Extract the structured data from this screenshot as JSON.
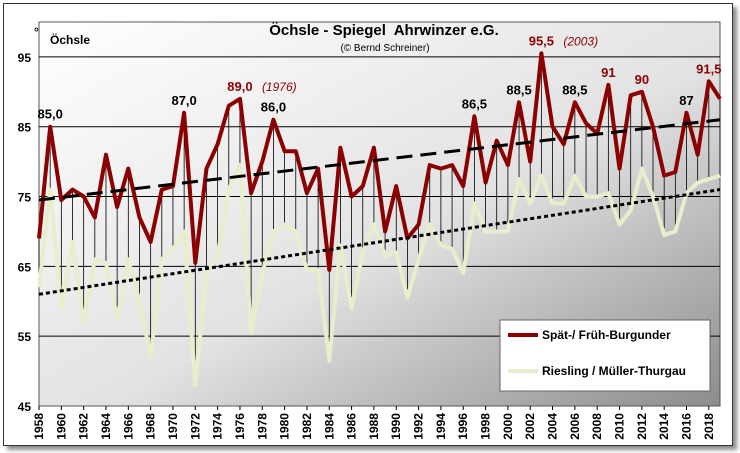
{
  "chart_data": {
    "type": "line",
    "title": "Öchsle - Spiegel  Ahrwinzer e.G.",
    "subtitle": "(© Bernd Schreiner)",
    "ylabel": "Öchsle",
    "ylabel_prefix": "°",
    "ylim": [
      45,
      100
    ],
    "yticks": [
      45,
      55,
      65,
      75,
      85,
      95
    ],
    "xlim": [
      1958,
      2019
    ],
    "xticks": [
      1958,
      1960,
      1962,
      1964,
      1966,
      1968,
      1970,
      1972,
      1974,
      1976,
      1978,
      1980,
      1982,
      1984,
      1986,
      1988,
      1990,
      1992,
      1994,
      1996,
      1998,
      2000,
      2002,
      2004,
      2006,
      2008,
      2010,
      2012,
      2014,
      2016,
      2018
    ],
    "grid": "horizontal",
    "x": [
      1958,
      1959,
      1960,
      1961,
      1962,
      1963,
      1964,
      1965,
      1966,
      1967,
      1968,
      1969,
      1970,
      1971,
      1972,
      1973,
      1974,
      1975,
      1976,
      1977,
      1978,
      1979,
      1980,
      1981,
      1982,
      1983,
      1984,
      1985,
      1986,
      1987,
      1988,
      1989,
      1990,
      1991,
      1992,
      1993,
      1994,
      1995,
      1996,
      1997,
      1998,
      1999,
      2000,
      2001,
      2002,
      2003,
      2004,
      2005,
      2006,
      2007,
      2008,
      2009,
      2010,
      2011,
      2012,
      2013,
      2014,
      2015,
      2016,
      2017,
      2018,
      2019
    ],
    "series": [
      {
        "name": "Spät-/ Früh-Burgunder",
        "color": "#8b0000",
        "values": [
          69,
          85,
          74.5,
          76,
          75,
          72,
          81,
          73.5,
          79,
          72,
          68.5,
          76,
          76.5,
          87,
          65.5,
          79,
          82.5,
          88,
          89,
          75.5,
          80,
          86,
          81.5,
          81.5,
          75.5,
          79,
          64.5,
          82,
          75,
          76.5,
          82,
          70,
          76.5,
          69,
          71,
          79.5,
          79,
          79.5,
          76.5,
          86.5,
          77,
          83,
          79.5,
          88.5,
          80,
          95.5,
          85,
          82.5,
          88.5,
          85.5,
          84,
          91,
          79,
          89.5,
          90,
          85,
          78,
          78.5,
          87,
          81,
          91.5,
          89
        ]
      },
      {
        "name": "Riesling / Müller-Thurgau",
        "color": "#e6eecb",
        "values": [
          62,
          76,
          59,
          68.5,
          57,
          66,
          65.5,
          57.5,
          66,
          60,
          52,
          66,
          67.5,
          70,
          48,
          64,
          66.5,
          76,
          79.5,
          55.5,
          64,
          70,
          71,
          70,
          64.5,
          64.5,
          51.5,
          68,
          59,
          67,
          71,
          66.5,
          67,
          60.5,
          66,
          71,
          68,
          67.5,
          64,
          74,
          70,
          70,
          70,
          77.5,
          74,
          78,
          74,
          74,
          78,
          75,
          75,
          75.5,
          71,
          73,
          79,
          75,
          69.5,
          70,
          75.5,
          77,
          77.5,
          78
        ]
      }
    ],
    "trendlines": [
      {
        "of": "Spät-/ Früh-Burgunder",
        "style": "long-dash",
        "color": "#000000",
        "from": [
          1958,
          74.5
        ],
        "to": [
          2019,
          86
        ]
      },
      {
        "of": "Riesling / Müller-Thurgau",
        "style": "dotted",
        "color": "#000000",
        "from": [
          1958,
          61
        ],
        "to": [
          2019,
          76
        ]
      }
    ],
    "annotations": [
      {
        "year": 1959,
        "value": 85,
        "label": "85,0",
        "color": "#000000"
      },
      {
        "year": 1971,
        "value": 87,
        "label": "87,0",
        "color": "#000000"
      },
      {
        "year": 1976,
        "value": 89,
        "label": "89,0",
        "note": "(1976)",
        "color": "#8b0000"
      },
      {
        "year": 1979,
        "value": 86,
        "label": "86,0",
        "color": "#000000"
      },
      {
        "year": 1997,
        "value": 86.5,
        "label": "86,5",
        "color": "#000000"
      },
      {
        "year": 2001,
        "value": 88.5,
        "label": "88,5",
        "color": "#000000"
      },
      {
        "year": 2003,
        "value": 95.5,
        "label": "95,5",
        "note": "(2003)",
        "color": "#8b0000"
      },
      {
        "year": 2006,
        "value": 88.5,
        "label": "88,5",
        "color": "#000000"
      },
      {
        "year": 2009,
        "value": 91,
        "label": "91",
        "color": "#8b0000"
      },
      {
        "year": 2012,
        "value": 90,
        "label": "90",
        "color": "#8b0000"
      },
      {
        "year": 2016,
        "value": 87,
        "label": "87",
        "color": "#000000"
      },
      {
        "year": 2018,
        "value": 91.5,
        "label": "91,5",
        "color": "#8b0000"
      }
    ],
    "legend": "bottom-right"
  }
}
